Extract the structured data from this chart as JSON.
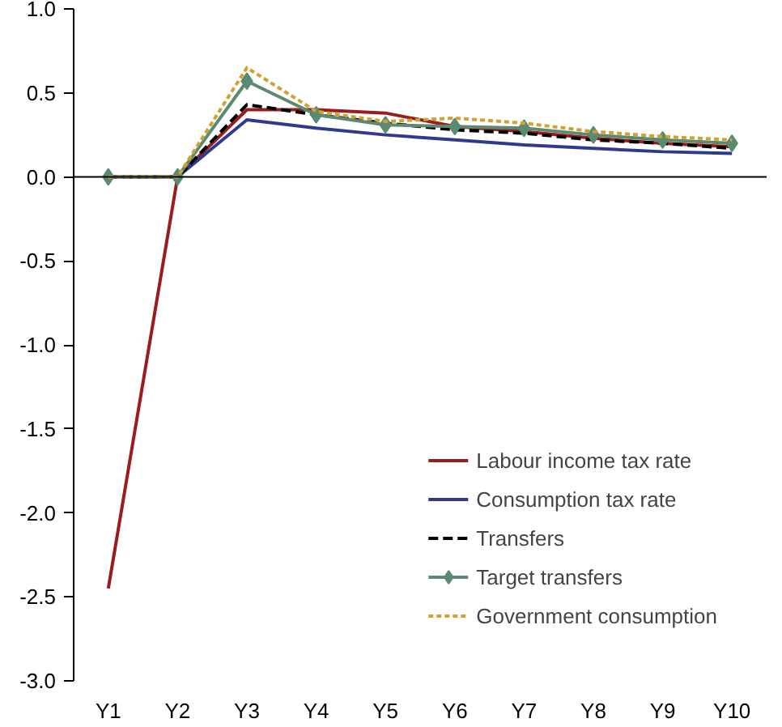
{
  "chart_data": {
    "type": "line",
    "categories": [
      "Y1",
      "Y2",
      "Y3",
      "Y4",
      "Y5",
      "Y6",
      "Y7",
      "Y8",
      "Y9",
      "Y10"
    ],
    "ylim": [
      -3,
      1
    ],
    "yticks": [
      {
        "value": -3,
        "label": "-3.0"
      },
      {
        "value": -2.5,
        "label": "-2.5"
      },
      {
        "value": -2,
        "label": "-2.0"
      },
      {
        "value": -1.5,
        "label": "-1.5"
      },
      {
        "value": -1,
        "label": "-1.0"
      },
      {
        "value": -0.5,
        "label": "-0.5"
      },
      {
        "value": 0,
        "label": "0.0"
      },
      {
        "value": 0.5,
        "label": "0.5"
      },
      {
        "value": 1,
        "label": "1.0"
      }
    ],
    "grid": false,
    "legend": "bottom right",
    "ref_lines": [
      {
        "axis": "y",
        "value": 0,
        "color": "#000000"
      }
    ],
    "series": [
      {
        "name": "Labour income tax rate",
        "color": "#9b1c1c",
        "line_style": "solid",
        "values": [
          -2.45,
          0,
          0.4,
          0.4,
          0.38,
          0.3,
          0.27,
          0.23,
          0.2,
          0.18
        ]
      },
      {
        "name": "Consumption tax rate",
        "color": "#2e3a8c",
        "line_style": "solid",
        "values": [
          0,
          0,
          0.34,
          0.29,
          0.25,
          0.22,
          0.19,
          0.17,
          0.15,
          0.14
        ]
      },
      {
        "name": "Transfers",
        "color": "#000000",
        "line_style": "dashed",
        "values": [
          0,
          0,
          0.43,
          0.37,
          0.32,
          0.28,
          0.26,
          0.22,
          0.2,
          0.17
        ]
      },
      {
        "name": "Target transfers",
        "color": "#5b8a72",
        "line_style": "solid",
        "marker": "diamond",
        "values": [
          0,
          0,
          0.57,
          0.37,
          0.31,
          0.3,
          0.29,
          0.25,
          0.22,
          0.2
        ]
      },
      {
        "name": "Government consumption",
        "color": "#d4a030",
        "line_style": "dotted",
        "values": [
          0,
          0,
          0.65,
          0.39,
          0.33,
          0.35,
          0.32,
          0.27,
          0.24,
          0.22
        ]
      }
    ]
  }
}
